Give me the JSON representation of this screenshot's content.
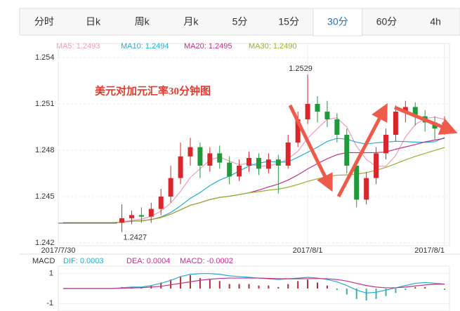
{
  "tabs": [
    "分时",
    "日k",
    "周k",
    "月k",
    "5分",
    "15分",
    "30分",
    "60分",
    "4h"
  ],
  "active_tab": 6,
  "chart_data": {
    "type": "candlestick",
    "annotation": "美元对加元汇率30分钟图",
    "ma_labels": [
      {
        "label": "MA5: 1.2493",
        "color": "#ee9ac0",
        "period": 5
      },
      {
        "label": "MA10: 1.2494",
        "color": "#22aed0",
        "period": 10
      },
      {
        "label": "MA20: 1.2495",
        "color": "#c4308a",
        "period": 20
      },
      {
        "label": "MA30: 1.2490",
        "color": "#9aaf2c",
        "period": 30
      }
    ],
    "up_color": "#d9262b",
    "down_color": "#1e9a3a",
    "categories": [
      "2017/7/30",
      null,
      null,
      null,
      null,
      null,
      null,
      null,
      null,
      null,
      null,
      null,
      null,
      null,
      null,
      null,
      null,
      null,
      null,
      null,
      null,
      null,
      null,
      null,
      null,
      "2017/8/1",
      null,
      null,
      null,
      null,
      null,
      null,
      null,
      null,
      null,
      null,
      null,
      null,
      null,
      "2017/8/1"
    ],
    "ohlc": [
      [
        1.2433,
        1.2433,
        1.2433,
        1.2433
      ],
      [
        1.2433,
        1.2433,
        1.2433,
        1.2433
      ],
      [
        1.2433,
        1.2433,
        1.2433,
        1.2433
      ],
      [
        1.2433,
        1.2433,
        1.2433,
        1.2433
      ],
      [
        1.2433,
        1.2433,
        1.2433,
        1.2433
      ],
      [
        1.2433,
        1.2433,
        1.2433,
        1.2433
      ],
      [
        1.2433,
        1.2445,
        1.2427,
        1.2436
      ],
      [
        1.2436,
        1.2441,
        1.2432,
        1.2438
      ],
      [
        1.2438,
        1.2443,
        1.2433,
        1.2437
      ],
      [
        1.2437,
        1.2446,
        1.2433,
        1.2442
      ],
      [
        1.2442,
        1.2455,
        1.2438,
        1.245
      ],
      [
        1.245,
        1.247,
        1.2446,
        1.2462
      ],
      [
        1.2462,
        1.2485,
        1.2458,
        1.2476
      ],
      [
        1.2476,
        1.2488,
        1.247,
        1.2482
      ],
      [
        1.2482,
        1.2485,
        1.2462,
        1.247
      ],
      [
        1.247,
        1.2482,
        1.2466,
        1.2478
      ],
      [
        1.2478,
        1.2483,
        1.2468,
        1.2472
      ],
      [
        1.2472,
        1.2476,
        1.2458,
        1.2463
      ],
      [
        1.2463,
        1.2474,
        1.246,
        1.247
      ],
      [
        1.247,
        1.2479,
        1.2466,
        1.2475
      ],
      [
        1.2475,
        1.2478,
        1.2464,
        1.2468
      ],
      [
        1.2468,
        1.2478,
        1.2465,
        1.2474
      ],
      [
        1.2474,
        1.2477,
        1.2452,
        1.247
      ],
      [
        1.247,
        1.249,
        1.2468,
        1.2485
      ],
      [
        1.2485,
        1.2505,
        1.2482,
        1.25
      ],
      [
        1.25,
        1.2529,
        1.2497,
        1.251
      ],
      [
        1.251,
        1.2515,
        1.2498,
        1.2505
      ],
      [
        1.2505,
        1.2512,
        1.2495,
        1.25
      ],
      [
        1.25,
        1.2504,
        1.2485,
        1.249
      ],
      [
        1.249,
        1.2494,
        1.2465,
        1.247
      ],
      [
        1.247,
        1.2474,
        1.2443,
        1.2448
      ],
      [
        1.2448,
        1.2466,
        1.2445,
        1.2462
      ],
      [
        1.2462,
        1.2482,
        1.2458,
        1.2478
      ],
      [
        1.2478,
        1.2494,
        1.2474,
        1.249
      ],
      [
        1.249,
        1.2509,
        1.2486,
        1.2505
      ],
      [
        1.2505,
        1.2512,
        1.2498,
        1.2508
      ],
      [
        1.2508,
        1.2511,
        1.2496,
        1.2502
      ],
      [
        1.2502,
        1.2506,
        1.2492,
        1.2498
      ],
      [
        1.2498,
        1.2502,
        1.2487,
        1.2494
      ],
      [
        1.2494,
        1.2502,
        1.249,
        1.2498
      ]
    ],
    "ylim": [
      1.242,
      1.254
    ],
    "yticks": [
      1.242,
      1.245,
      1.248,
      1.251,
      1.254
    ],
    "high_label_index": 25,
    "low_label_index": 6,
    "macd": {
      "labels": [
        {
          "label": "MACD",
          "color": "#333333"
        },
        {
          "label": "DIF: 0.0003",
          "color": "#22aed0"
        },
        {
          "label": "DEA: 0.0004",
          "color": "#c4308a"
        },
        {
          "label": "MACD: -0.0002",
          "color": "#c4308a"
        }
      ],
      "ylim": [
        -1.5,
        1.5
      ],
      "yticks": [
        1,
        -1
      ],
      "dif": [
        0,
        0,
        0,
        0,
        0,
        0,
        0.05,
        0.1,
        0.1,
        0.2,
        0.35,
        0.55,
        0.8,
        0.95,
        1.0,
        1.0,
        0.95,
        0.85,
        0.8,
        0.75,
        0.7,
        0.65,
        0.6,
        0.65,
        0.7,
        0.75,
        0.7,
        0.6,
        0.45,
        0.2,
        -0.1,
        -0.3,
        -0.25,
        -0.1,
        0.05,
        0.2,
        0.35,
        0.4,
        0.35,
        0.3
      ],
      "dea": [
        0,
        0,
        0,
        0,
        0,
        0,
        0.02,
        0.04,
        0.06,
        0.1,
        0.15,
        0.25,
        0.35,
        0.45,
        0.55,
        0.62,
        0.67,
        0.7,
        0.7,
        0.7,
        0.7,
        0.68,
        0.66,
        0.65,
        0.65,
        0.66,
        0.67,
        0.65,
        0.6,
        0.5,
        0.35,
        0.2,
        0.1,
        0.05,
        0.05,
        0.1,
        0.17,
        0.24,
        0.28,
        0.3
      ],
      "hist": [
        0,
        0,
        0,
        0,
        0,
        0,
        0.1,
        0.1,
        0.1,
        0.2,
        0.4,
        0.6,
        0.8,
        0.9,
        0.7,
        0.6,
        0.5,
        0.3,
        0.3,
        0.3,
        0.2,
        0.2,
        0.1,
        0.3,
        0.5,
        0.6,
        0.4,
        0.2,
        -0.1,
        -0.4,
        -0.7,
        -0.8,
        -0.7,
        -0.5,
        -0.3,
        -0.1,
        0.1,
        0.1,
        0,
        -0.1
      ]
    }
  }
}
